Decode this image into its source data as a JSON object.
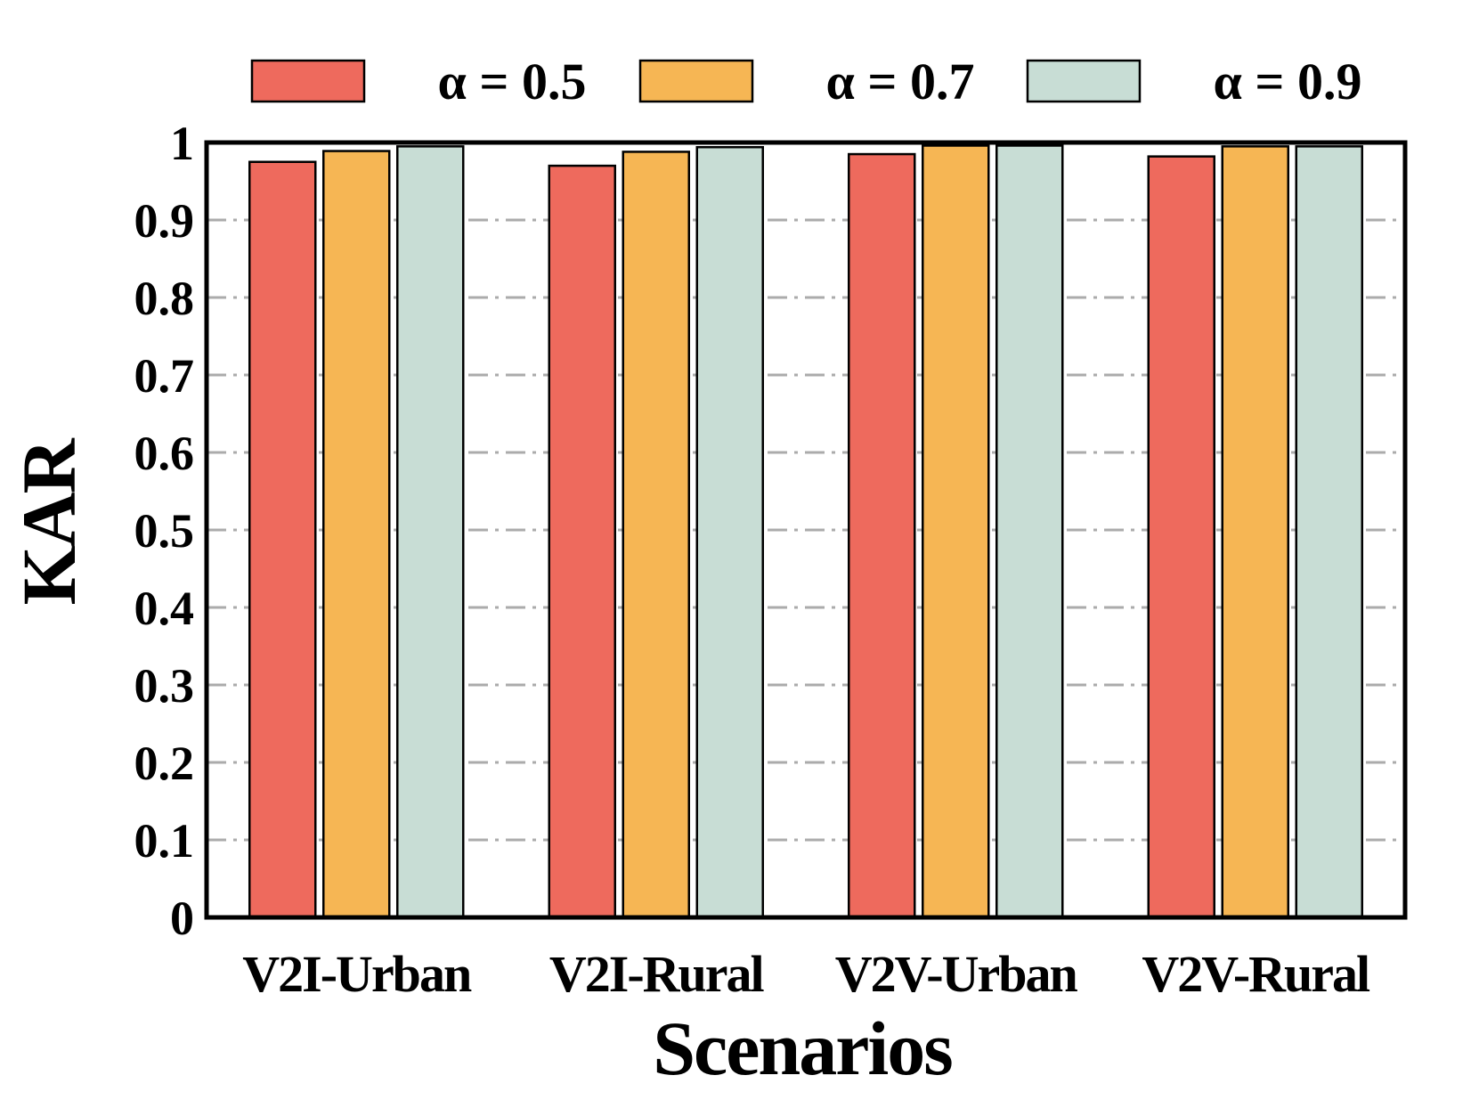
{
  "chart_data": {
    "type": "bar",
    "title": "",
    "xlabel": "Scenarios",
    "ylabel": "KAR",
    "ylim": [
      0,
      1
    ],
    "yticks": [
      "0",
      "0.1",
      "0.2",
      "0.3",
      "0.4",
      "0.5",
      "0.6",
      "0.7",
      "0.8",
      "0.9",
      "1"
    ],
    "grid": true,
    "legend_position": "top",
    "categories": [
      "V2I-Urban",
      "V2I-Rural",
      "V2V-Urban",
      "V2V-Rural"
    ],
    "series": [
      {
        "name": "α = 0.5",
        "color": "#EE6A5D",
        "values": [
          0.975,
          0.97,
          0.985,
          0.982
        ]
      },
      {
        "name": "α = 0.7",
        "color": "#F6B654",
        "values": [
          0.989,
          0.988,
          0.996,
          0.995
        ]
      },
      {
        "name": "α = 0.9",
        "color": "#C8DDD5",
        "values": [
          0.995,
          0.994,
          0.996,
          0.995
        ]
      }
    ]
  }
}
